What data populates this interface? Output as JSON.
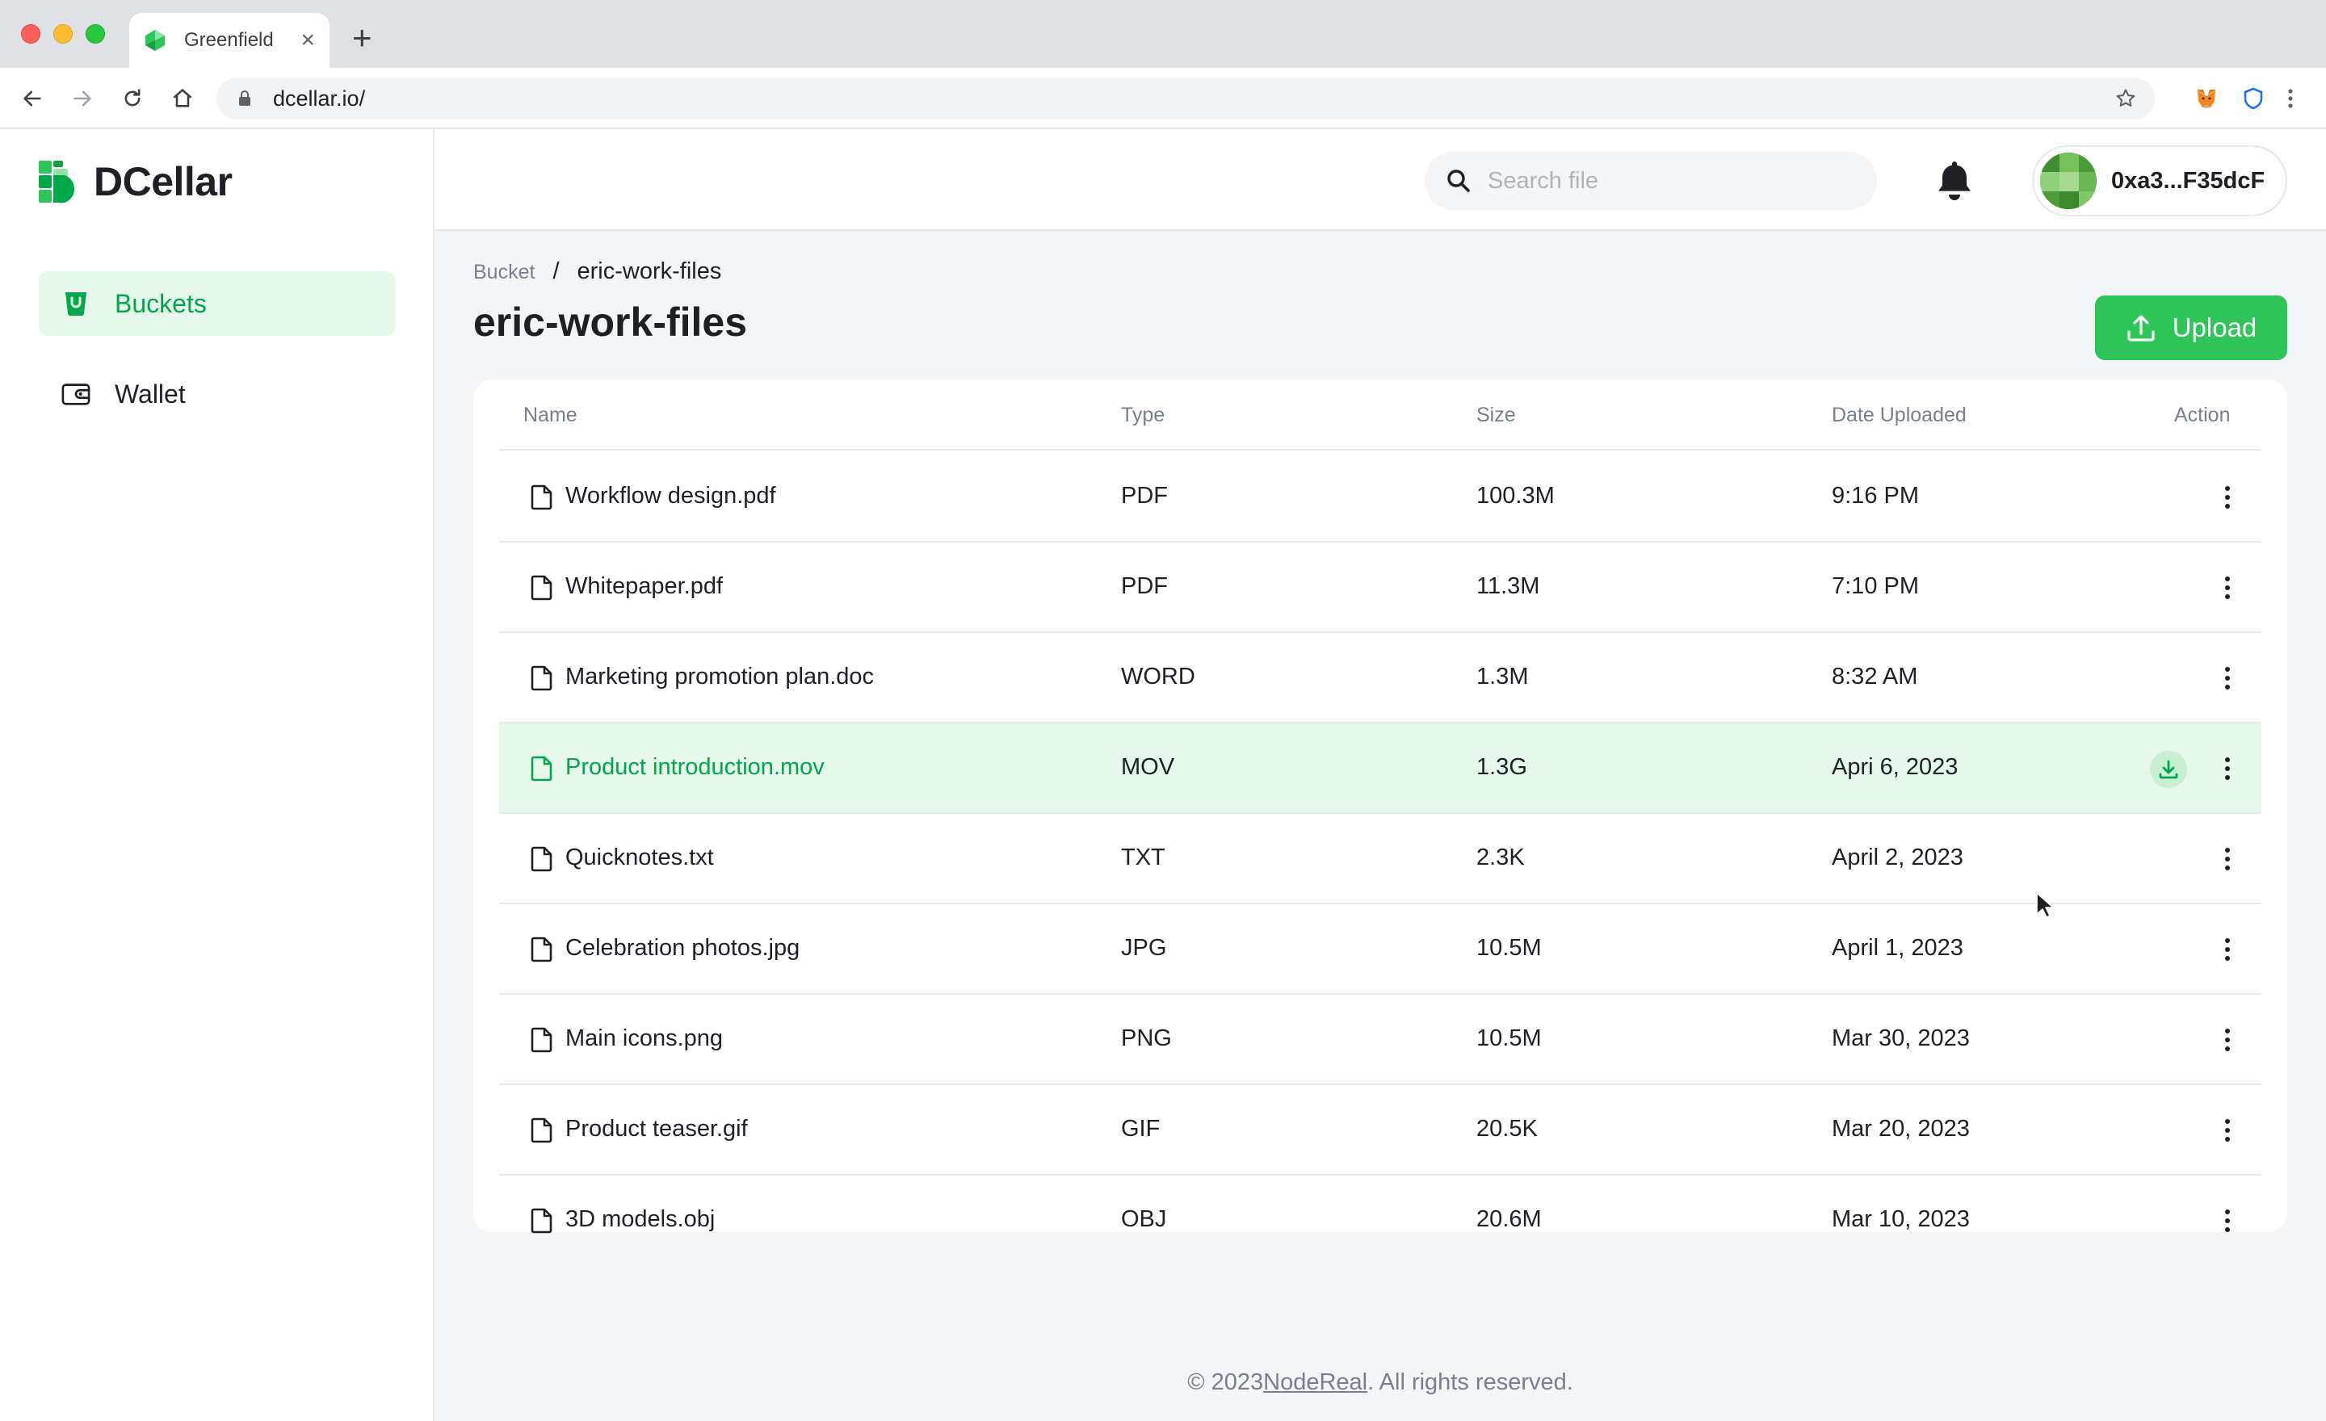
{
  "browser": {
    "tab_title": "Greenfield",
    "url": "dcellar.io/"
  },
  "app": {
    "brand": "DCellar",
    "accent_color": "#00a849",
    "button_color": "#2ec659"
  },
  "sidebar": {
    "items": [
      {
        "label": "Buckets",
        "icon": "bucket-icon",
        "active": true
      },
      {
        "label": "Wallet",
        "icon": "wallet-icon",
        "active": false
      }
    ]
  },
  "header": {
    "search_placeholder": "Search file",
    "account_address": "0xa3...F35dcF"
  },
  "breadcrumb": {
    "root": "Bucket",
    "separator": "/",
    "current": "eric-work-files"
  },
  "page": {
    "title": "eric-work-files",
    "upload_label": "Upload"
  },
  "table": {
    "columns": {
      "name": "Name",
      "type": "Type",
      "size": "Size",
      "date": "Date Uploaded",
      "action": "Action"
    },
    "rows": [
      {
        "name": "Workflow design.pdf",
        "type": "PDF",
        "size": "100.3M",
        "date": "9:16 PM"
      },
      {
        "name": "Whitepaper.pdf",
        "type": "PDF",
        "size": "11.3M",
        "date": "7:10 PM"
      },
      {
        "name": "Marketing promotion plan.doc",
        "type": "WORD",
        "size": "1.3M",
        "date": "8:32 AM"
      },
      {
        "name": "Product introduction.mov",
        "type": "MOV",
        "size": "1.3G",
        "date": "Apri 6, 2023",
        "highlighted": true
      },
      {
        "name": "Quicknotes.txt",
        "type": "TXT",
        "size": "2.3K",
        "date": "April 2, 2023"
      },
      {
        "name": "Celebration photos.jpg",
        "type": "JPG",
        "size": "10.5M",
        "date": "April 1, 2023"
      },
      {
        "name": "Main icons.png",
        "type": "PNG",
        "size": "10.5M",
        "date": "Mar 30, 2023"
      },
      {
        "name": "Product teaser.gif",
        "type": "GIF",
        "size": "20.5K",
        "date": "Mar 20, 2023"
      },
      {
        "name": "3D models.obj",
        "type": "OBJ",
        "size": "20.6M",
        "date": "Mar 10, 2023"
      }
    ]
  },
  "footer": {
    "prefix": "© 2023 ",
    "link": "NodeReal",
    "suffix": ". All rights reserved."
  }
}
